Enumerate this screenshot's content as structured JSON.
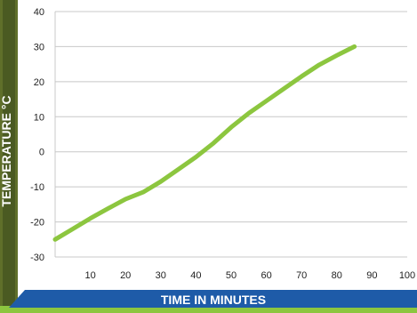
{
  "chart_data": {
    "type": "line",
    "xlabel": "TIME IN MINUTES",
    "ylabel": "TEMPERATURE °C",
    "xlim": [
      0,
      100
    ],
    "ylim": [
      -30,
      40
    ],
    "x_ticks": [
      10,
      20,
      30,
      40,
      50,
      60,
      70,
      80,
      90,
      100
    ],
    "y_ticks": [
      40,
      30,
      20,
      10,
      0,
      -10,
      -20,
      -30
    ],
    "grid": "horizontal",
    "series": [
      {
        "x": [
          0,
          5,
          10,
          15,
          20,
          25,
          30,
          35,
          40,
          45,
          50,
          55,
          60,
          65,
          70,
          75,
          80,
          85
        ],
        "y": [
          -25,
          -22,
          -19,
          -16.2,
          -13.5,
          -11.5,
          -8.5,
          -5,
          -1.5,
          2.5,
          7,
          11,
          14.5,
          18,
          21.5,
          24.8,
          27.5,
          30
        ]
      }
    ],
    "colors": {
      "line": "#8cc63f",
      "gridline": "#c8c8c8",
      "axis_band": "#1e5ba8",
      "left_accent": "#5f6f2a",
      "bottom_accent": "#8cc63f"
    }
  }
}
